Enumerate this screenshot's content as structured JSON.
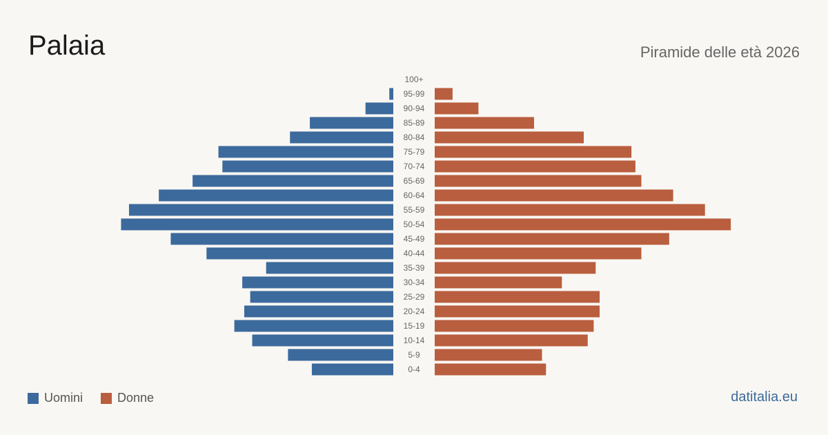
{
  "header": {
    "title": "Palaia",
    "subtitle": "Piramide delle età 2026"
  },
  "legend": {
    "men_label": "Uomini",
    "women_label": "Donne"
  },
  "footer": {
    "source": "datitalia.eu"
  },
  "colors": {
    "men": "#3c6a9c",
    "women": "#b95e3e",
    "source": "#3c6a9c",
    "age_label": "#666666",
    "background": "#f9f7f3"
  },
  "chart_data": {
    "type": "bar",
    "orientation": "horizontal-population-pyramid",
    "categories": [
      "100+",
      "95-99",
      "90-94",
      "85-89",
      "80-84",
      "75-79",
      "70-74",
      "65-69",
      "60-64",
      "55-59",
      "50-54",
      "45-49",
      "40-44",
      "35-39",
      "30-34",
      "25-29",
      "20-24",
      "15-19",
      "10-14",
      "5-9",
      "0-4"
    ],
    "series": [
      {
        "name": "Uomini",
        "values": [
          0,
          2,
          14,
          42,
          52,
          88,
          86,
          101,
          118,
          133,
          137,
          112,
          94,
          64,
          76,
          72,
          75,
          80,
          71,
          53,
          41
        ]
      },
      {
        "name": "Donne",
        "values": [
          0,
          9,
          22,
          50,
          75,
          99,
          101,
          104,
          120,
          136,
          149,
          118,
          104,
          81,
          64,
          83,
          83,
          80,
          77,
          54,
          56
        ]
      }
    ]
  }
}
